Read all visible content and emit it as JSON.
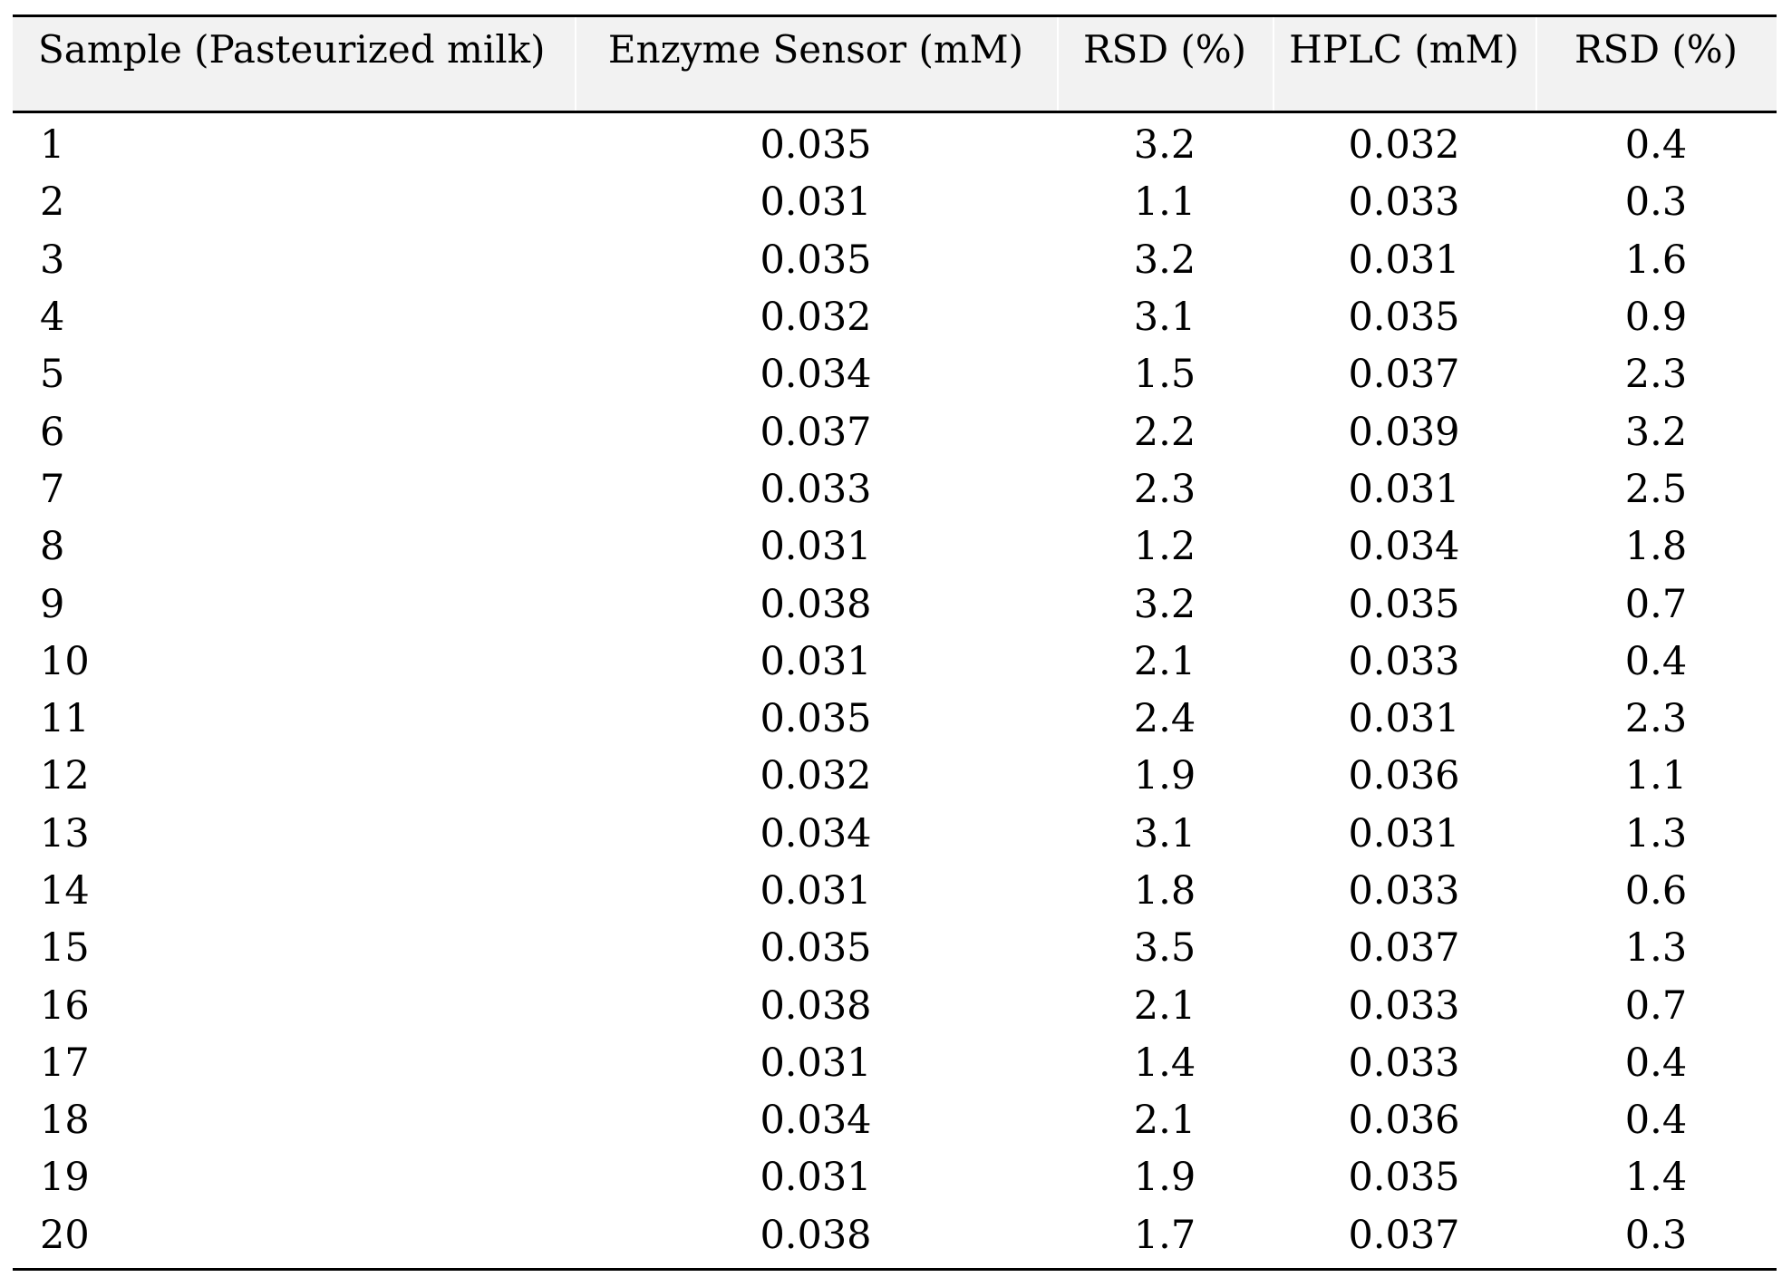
{
  "table": {
    "headers": [
      "Sample (Pasteurized milk)",
      "Enzyme Sensor (mM)",
      "RSD (%)",
      "HPLC (mM)",
      "RSD (%)"
    ],
    "rows": [
      [
        "1",
        "0.035",
        "3.2",
        "0.032",
        "0.4"
      ],
      [
        "2",
        "0.031",
        "1.1",
        "0.033",
        "0.3"
      ],
      [
        "3",
        "0.035",
        "3.2",
        "0.031",
        "1.6"
      ],
      [
        "4",
        "0.032",
        "3.1",
        "0.035",
        "0.9"
      ],
      [
        "5",
        "0.034",
        "1.5",
        "0.037",
        "2.3"
      ],
      [
        "6",
        "0.037",
        "2.2",
        "0.039",
        "3.2"
      ],
      [
        "7",
        "0.033",
        "2.3",
        "0.031",
        "2.5"
      ],
      [
        "8",
        "0.031",
        "1.2",
        "0.034",
        "1.8"
      ],
      [
        "9",
        "0.038",
        "3.2",
        "0.035",
        "0.7"
      ],
      [
        "10",
        "0.031",
        "2.1",
        "0.033",
        "0.4"
      ],
      [
        "11",
        "0.035",
        "2.4",
        "0.031",
        "2.3"
      ],
      [
        "12",
        "0.032",
        "1.9",
        "0.036",
        "1.1"
      ],
      [
        "13",
        "0.034",
        "3.1",
        "0.031",
        "1.3"
      ],
      [
        "14",
        "0.031",
        "1.8",
        "0.033",
        "0.6"
      ],
      [
        "15",
        "0.035",
        "3.5",
        "0.037",
        "1.3"
      ],
      [
        "16",
        "0.038",
        "2.1",
        "0.033",
        "0.7"
      ],
      [
        "17",
        "0.031",
        "1.4",
        "0.033",
        "0.4"
      ],
      [
        "18",
        "0.034",
        "2.1",
        "0.036",
        "0.4"
      ],
      [
        "19",
        "0.031",
        "1.9",
        "0.035",
        "1.4"
      ],
      [
        "20",
        "0.038",
        "1.7",
        "0.037",
        "0.3"
      ]
    ]
  }
}
